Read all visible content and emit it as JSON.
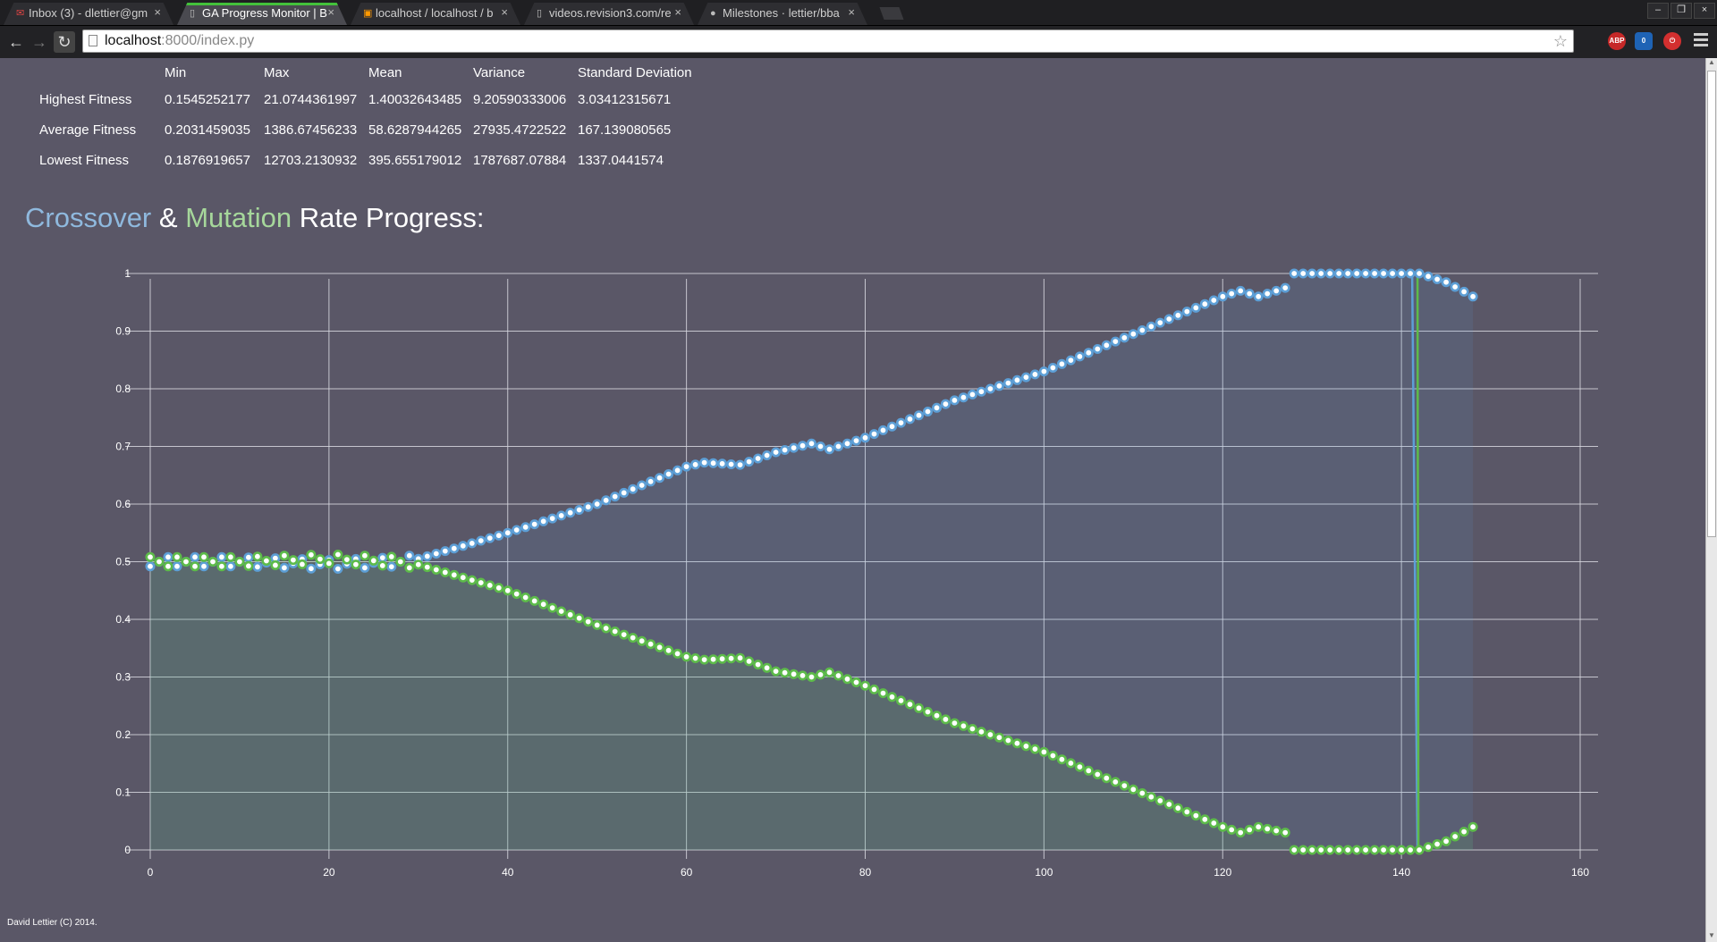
{
  "browser": {
    "tabs": [
      {
        "title": "Inbox (3) - dlettier@gm",
        "icon": "gmail-icon",
        "active": false
      },
      {
        "title": "GA Progress Monitor | B",
        "icon": "page-icon",
        "active": true
      },
      {
        "title": "localhost / localhost / b",
        "icon": "phpmyadmin-icon",
        "active": false
      },
      {
        "title": "videos.revision3.com/re",
        "icon": "page-icon",
        "active": false
      },
      {
        "title": "Milestones · lettier/bba",
        "icon": "github-icon",
        "active": false
      }
    ],
    "address_host": "localhost",
    "address_path": ":8000/index.py",
    "extensions": {
      "abp": "ABP",
      "badge": "0"
    }
  },
  "stats": {
    "headers": [
      "",
      "Min",
      "Max",
      "Mean",
      "Variance",
      "Standard Deviation"
    ],
    "rows": [
      [
        "Highest Fitness",
        "0.1545252177",
        "21.0744361997",
        "1.40032643485",
        "9.20590333006",
        "3.03412315671"
      ],
      [
        "Average Fitness",
        "0.2031459035",
        "1386.67456233",
        "58.6287944265",
        "27935.4722522",
        "167.139080565"
      ],
      [
        "Lowest Fitness",
        "0.1876919657",
        "12703.2130932",
        "395.655179012",
        "1787687.07884",
        "1337.0441574"
      ]
    ]
  },
  "heading": {
    "crossover": "Crossover",
    "amp": "&",
    "mutation": "Mutation",
    "rest": "Rate Progress:"
  },
  "colors": {
    "crossover": "#5d9fd6",
    "mutation": "#5dbb4a",
    "crossover_text": "#8fb9de",
    "mutation_text": "#a6d79b",
    "background": "#5a5767"
  },
  "chart_data": {
    "type": "area",
    "title": "Crossover & Mutation Rate Progress:",
    "xlim": [
      0,
      160
    ],
    "ylim": [
      0,
      1
    ],
    "x_ticks": [
      0,
      20,
      40,
      60,
      80,
      100,
      120,
      140,
      160
    ],
    "y_ticks": [
      0,
      0.1,
      0.2,
      0.3,
      0.4,
      0.5,
      0.6,
      0.7,
      0.8,
      0.9,
      1
    ],
    "grid": true,
    "x_range": [
      0,
      148
    ],
    "series": [
      {
        "name": "Crossover",
        "color": "#5d9fd6",
        "anchors": [
          [
            0,
            0.5
          ],
          [
            10,
            0.5
          ],
          [
            20,
            0.495
          ],
          [
            28,
            0.5
          ],
          [
            30,
            0.505
          ],
          [
            40,
            0.55
          ],
          [
            50,
            0.6
          ],
          [
            60,
            0.665
          ],
          [
            62,
            0.672
          ],
          [
            66,
            0.668
          ],
          [
            70,
            0.69
          ],
          [
            74,
            0.705
          ],
          [
            76,
            0.695
          ],
          [
            80,
            0.715
          ],
          [
            90,
            0.78
          ],
          [
            100,
            0.83
          ],
          [
            110,
            0.895
          ],
          [
            120,
            0.96
          ],
          [
            122,
            0.97
          ],
          [
            124,
            0.96
          ],
          [
            127,
            0.975
          ],
          [
            128,
            1.0
          ],
          [
            140,
            1.0
          ],
          [
            142,
            1.0
          ],
          [
            145,
            0.985
          ],
          [
            148,
            0.96
          ]
        ]
      },
      {
        "name": "Mutation",
        "color": "#5dbb4a",
        "anchors": [
          [
            0,
            0.5
          ],
          [
            10,
            0.5
          ],
          [
            20,
            0.505
          ],
          [
            28,
            0.5
          ],
          [
            30,
            0.495
          ],
          [
            40,
            0.45
          ],
          [
            50,
            0.39
          ],
          [
            60,
            0.335
          ],
          [
            62,
            0.33
          ],
          [
            66,
            0.333
          ],
          [
            70,
            0.31
          ],
          [
            74,
            0.3
          ],
          [
            76,
            0.308
          ],
          [
            80,
            0.285
          ],
          [
            90,
            0.22
          ],
          [
            100,
            0.17
          ],
          [
            110,
            0.105
          ],
          [
            120,
            0.04
          ],
          [
            122,
            0.03
          ],
          [
            124,
            0.04
          ],
          [
            127,
            0.03
          ],
          [
            128,
            0.0
          ],
          [
            140,
            0.0
          ],
          [
            142,
            0.0
          ],
          [
            145,
            0.015
          ],
          [
            148,
            0.04
          ]
        ]
      }
    ]
  },
  "footer": "David Lettier (C) 2014."
}
